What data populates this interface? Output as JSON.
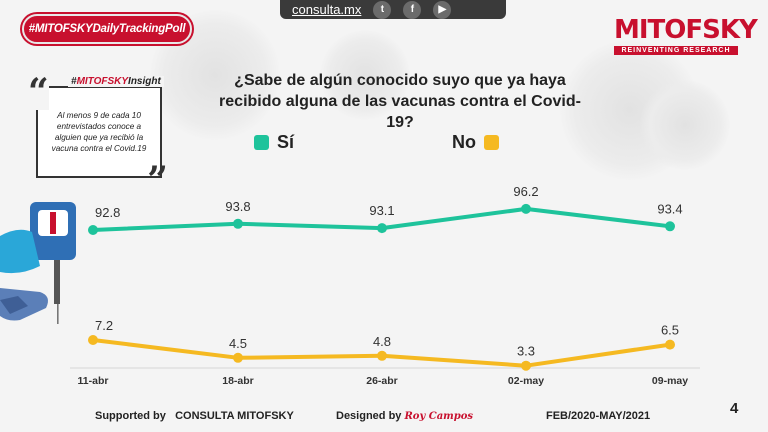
{
  "topbar": {
    "site": "consulta.mx",
    "social": [
      {
        "icon": "twitter-icon",
        "glyph": "t"
      },
      {
        "icon": "facebook-icon",
        "glyph": "f"
      },
      {
        "icon": "youtube-icon",
        "glyph": "▶"
      }
    ]
  },
  "badge": "#MITOFSKYDailyTrackingPoll",
  "logo": {
    "name": "MITOFSKY",
    "tagline": "REINVENTING RESEARCH"
  },
  "insight": {
    "label_prefix": "#",
    "label_brand": "MITOFSKY",
    "label_suffix": "Insight",
    "text": "Al menos 9 de cada 10 entrevistados conoce a alguien que ya recibió la vacuna contra el Covid.19"
  },
  "colors": {
    "si": "#1ec39b",
    "no": "#f5b921",
    "brand": "#c8102e"
  },
  "chart_data": {
    "type": "line",
    "title": "¿Sabe de algún conocido suyo que ya haya recibido alguna de las vacunas contra el Covid-19?",
    "categories": [
      "11-abr",
      "18-abr",
      "26-abr",
      "02-may",
      "09-may"
    ],
    "series": [
      {
        "name": "Sí",
        "values": [
          92.8,
          93.8,
          93.1,
          96.2,
          93.4
        ],
        "labels": [
          "92.8",
          "93.8",
          "93.1",
          "96.2",
          "93.4"
        ]
      },
      {
        "name": "No",
        "values": [
          7.2,
          4.5,
          4.8,
          3.3,
          6.5
        ],
        "labels": [
          "7.2",
          "4.5",
          "4.8",
          "3.3",
          "6.5"
        ]
      }
    ],
    "ylim": [
      0,
      100
    ],
    "legend": "top"
  },
  "footer": {
    "supported_label": "Supported by",
    "supported_name": "CONSULTA  MITOFSKY",
    "designed_label": "Designed by",
    "designer": "Roy Campos",
    "period": "FEB/2020-MAY/2021",
    "page": "4"
  }
}
